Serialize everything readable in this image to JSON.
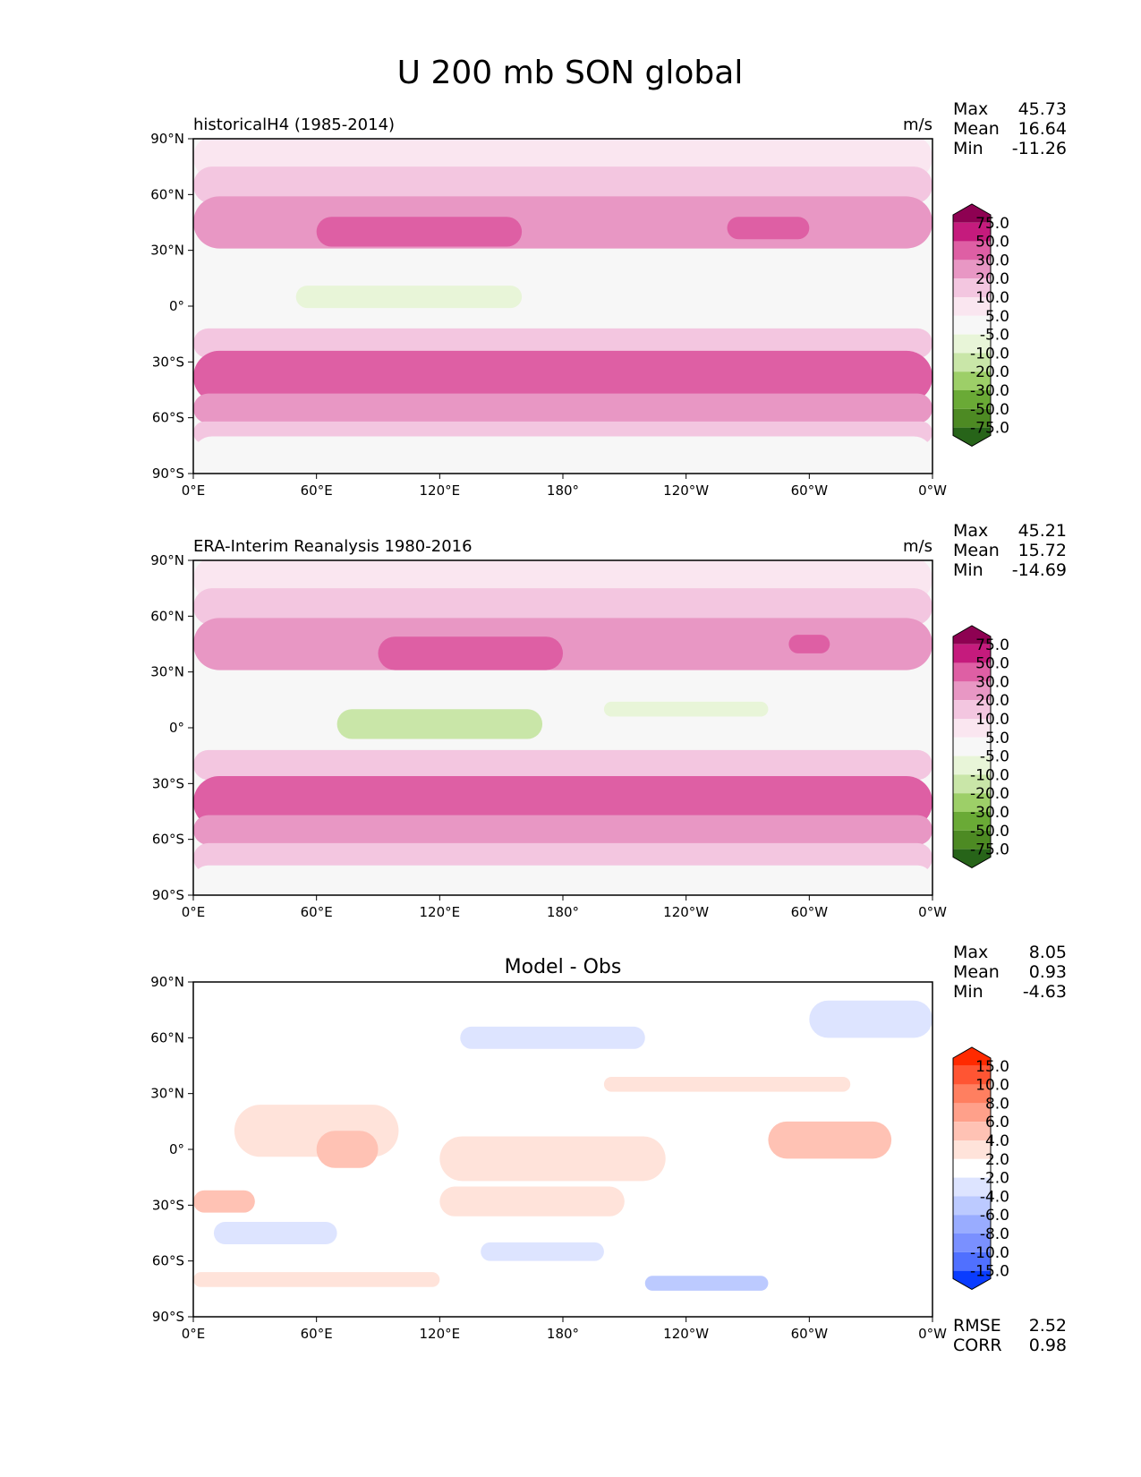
{
  "chart_data": {
    "type": "heatmap",
    "title": "U 200 mb SON global",
    "x_ticks": [
      "0°E",
      "60°E",
      "120°E",
      "180°",
      "120°W",
      "60°W",
      "0°W"
    ],
    "y_ticks": [
      "90°N",
      "60°N",
      "30°N",
      "0°",
      "30°S",
      "60°S",
      "90°S"
    ],
    "xlim": [
      0,
      360
    ],
    "ylim": [
      -90,
      90
    ],
    "panels": [
      {
        "id": "model",
        "left_title": "historicalH4 (1985-2014)",
        "center_title": "",
        "units": "m/s",
        "stats": [
          {
            "label": "Max",
            "value": "45.73"
          },
          {
            "label": "Mean",
            "value": "16.64"
          },
          {
            "label": "Min",
            "value": "-11.26"
          }
        ],
        "colorbar": {
          "levels": [
            "75.0",
            "50.0",
            "30.0",
            "20.0",
            "10.0",
            "5.0",
            "-5.0",
            "-10.0",
            "-20.0",
            "-30.0",
            "-50.0",
            "-75.0"
          ],
          "colors": [
            "#8e0152",
            "#c51b7d",
            "#de5fa4",
            "#e897c4",
            "#f3c6e0",
            "#fae6f0",
            "#f7f7f7",
            "#e8f5d8",
            "#c9e6a8",
            "#9dcf68",
            "#6aaa36",
            "#4d8a23",
            "#276419"
          ]
        },
        "metrics": []
      },
      {
        "id": "obs",
        "left_title": "ERA-Interim Reanalysis 1980-2016",
        "center_title": "",
        "units": "m/s",
        "stats": [
          {
            "label": "Max",
            "value": "45.21"
          },
          {
            "label": "Mean",
            "value": "15.72"
          },
          {
            "label": "Min",
            "value": "-14.69"
          }
        ],
        "colorbar": {
          "levels": [
            "75.0",
            "50.0",
            "30.0",
            "20.0",
            "10.0",
            "5.0",
            "-5.0",
            "-10.0",
            "-20.0",
            "-30.0",
            "-50.0",
            "-75.0"
          ],
          "colors": [
            "#8e0152",
            "#c51b7d",
            "#de5fa4",
            "#e897c4",
            "#f3c6e0",
            "#fae6f0",
            "#f7f7f7",
            "#e8f5d8",
            "#c9e6a8",
            "#9dcf68",
            "#6aaa36",
            "#4d8a23",
            "#276419"
          ]
        },
        "metrics": []
      },
      {
        "id": "diff",
        "left_title": "",
        "center_title": "Model - Obs",
        "units": "",
        "stats": [
          {
            "label": "Max",
            "value": "8.05"
          },
          {
            "label": "Mean",
            "value": "0.93"
          },
          {
            "label": "Min",
            "value": "-4.63"
          }
        ],
        "colorbar": {
          "levels": [
            "15.0",
            "10.0",
            "8.0",
            "6.0",
            "4.0",
            "2.0",
            "-2.0",
            "-4.0",
            "-6.0",
            "-8.0",
            "-10.0",
            "-15.0"
          ],
          "colors": [
            "#ff2a00",
            "#ff5533",
            "#ff7f60",
            "#ffa08a",
            "#ffc2b4",
            "#ffe3da",
            "#ffffff",
            "#dde4ff",
            "#bccaff",
            "#99acff",
            "#7a90ff",
            "#5070ff",
            "#0a3cff"
          ]
        },
        "metrics": [
          {
            "label": "RMSE",
            "value": "2.52"
          },
          {
            "label": "CORR",
            "value": "0.98"
          }
        ]
      }
    ]
  }
}
